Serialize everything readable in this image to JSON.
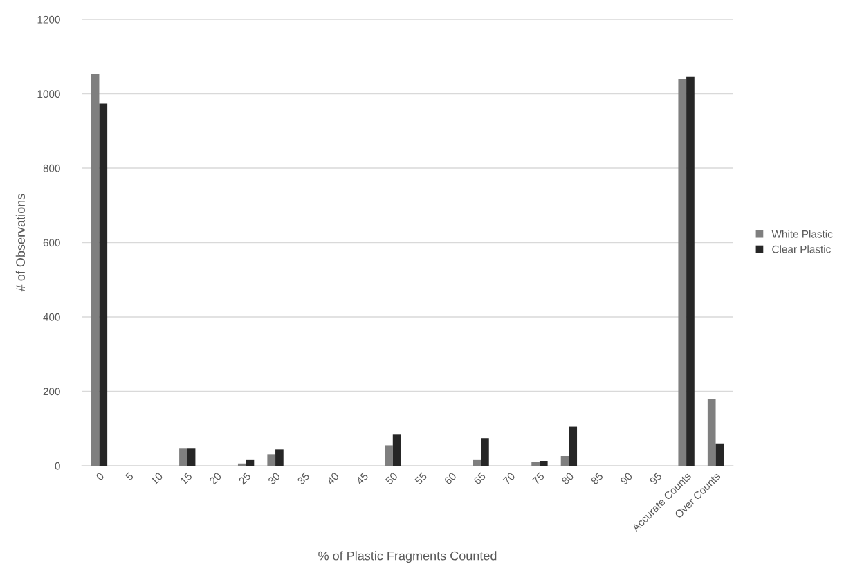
{
  "chart_data": {
    "type": "bar",
    "xlabel": "% of Plastic Fragments Counted",
    "ylabel": "# of Observations",
    "categories": [
      "0",
      "5",
      "10",
      "15",
      "20",
      "25",
      "30",
      "35",
      "40",
      "45",
      "50",
      "55",
      "60",
      "65",
      "70",
      "75",
      "80",
      "85",
      "90",
      "95",
      "Accurate Counts",
      "Over Counts"
    ],
    "series": [
      {
        "name": "White Plastic",
        "color": "#7f7f7f",
        "values": [
          1053,
          0,
          0,
          46,
          0,
          6,
          31,
          0,
          0,
          0,
          55,
          0,
          0,
          17,
          0,
          10,
          26,
          0,
          0,
          0,
          1040,
          180
        ]
      },
      {
        "name": "Clear Plastic",
        "color": "#262626",
        "values": [
          974,
          0,
          0,
          46,
          0,
          17,
          44,
          0,
          0,
          0,
          85,
          0,
          0,
          74,
          0,
          13,
          105,
          0,
          0,
          0,
          1046,
          60
        ]
      }
    ],
    "ylim": [
      0,
      1200
    ],
    "yticks": [
      0,
      200,
      400,
      600,
      800,
      1000,
      1200
    ],
    "grid": "y",
    "legend": "right"
  }
}
